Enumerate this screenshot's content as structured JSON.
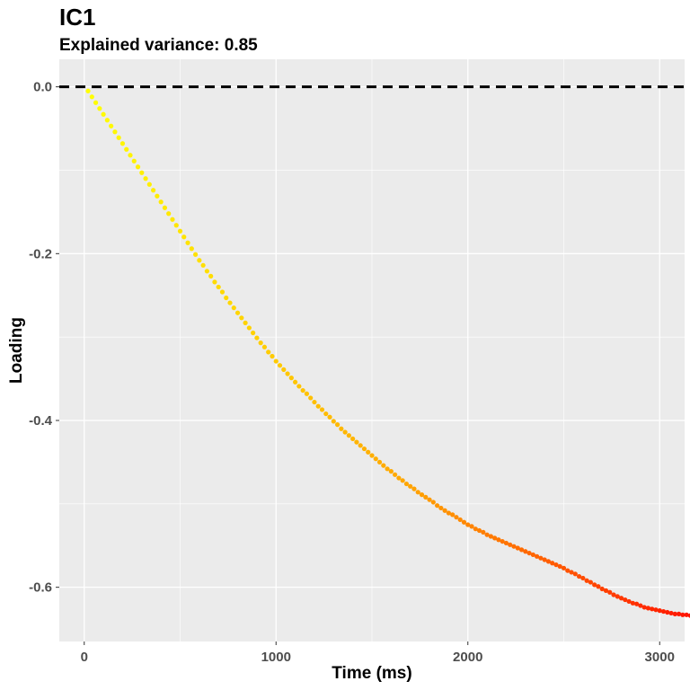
{
  "chart_data": {
    "type": "scatter",
    "title": "IC1",
    "subtitle": "Explained variance: 0.85",
    "xlabel": "Time (ms)",
    "ylabel": "Loading",
    "xlim": [
      -130,
      3130
    ],
    "ylim": [
      -0.665,
      0.033
    ],
    "x_ticks": [
      0,
      1000,
      2000,
      3000
    ],
    "x_tick_labels": [
      "0",
      "1000",
      "2000",
      "3000"
    ],
    "y_ticks": [
      0.0,
      -0.2,
      -0.4,
      -0.6
    ],
    "y_tick_labels": [
      "0.0",
      "-0.2",
      "-0.4",
      "-0.6"
    ],
    "grid": true,
    "reference_line": {
      "y": 0.0,
      "style": "dashed",
      "color": "#000000"
    },
    "color_gradient": [
      "#ffff00",
      "#ffa500",
      "#ff0000"
    ],
    "series": [
      {
        "x_start": 20,
        "x_step": 20,
        "values": [
          -0.005,
          -0.012,
          -0.019,
          -0.026,
          -0.033,
          -0.04,
          -0.047,
          -0.054,
          -0.061,
          -0.068,
          -0.075,
          -0.082,
          -0.089,
          -0.096,
          -0.103,
          -0.11,
          -0.117,
          -0.124,
          -0.131,
          -0.138,
          -0.145,
          -0.152,
          -0.159,
          -0.166,
          -0.173,
          -0.18,
          -0.187,
          -0.194,
          -0.201,
          -0.208,
          -0.214,
          -0.221,
          -0.227,
          -0.234,
          -0.24,
          -0.246,
          -0.253,
          -0.259,
          -0.265,
          -0.271,
          -0.277,
          -0.283,
          -0.289,
          -0.295,
          -0.301,
          -0.307,
          -0.312,
          -0.318,
          -0.323,
          -0.329,
          -0.334,
          -0.339,
          -0.344,
          -0.349,
          -0.354,
          -0.359,
          -0.364,
          -0.368,
          -0.373,
          -0.378,
          -0.383,
          -0.387,
          -0.392,
          -0.396,
          -0.401,
          -0.405,
          -0.41,
          -0.414,
          -0.418,
          -0.422,
          -0.426,
          -0.43,
          -0.434,
          -0.438,
          -0.442,
          -0.446,
          -0.45,
          -0.454,
          -0.458,
          -0.461,
          -0.465,
          -0.469,
          -0.472,
          -0.476,
          -0.479,
          -0.482,
          -0.486,
          -0.489,
          -0.492,
          -0.495,
          -0.498,
          -0.502,
          -0.505,
          -0.508,
          -0.511,
          -0.513,
          -0.516,
          -0.519,
          -0.522,
          -0.525,
          -0.527,
          -0.53,
          -0.532,
          -0.534,
          -0.537,
          -0.539,
          -0.541,
          -0.543,
          -0.545,
          -0.547,
          -0.549,
          -0.551,
          -0.553,
          -0.555,
          -0.557,
          -0.559,
          -0.561,
          -0.563,
          -0.565,
          -0.567,
          -0.569,
          -0.571,
          -0.573,
          -0.575,
          -0.577,
          -0.58,
          -0.582,
          -0.584,
          -0.587,
          -0.589,
          -0.592,
          -0.594,
          -0.597,
          -0.599,
          -0.602,
          -0.604,
          -0.606,
          -0.609,
          -0.611,
          -0.613,
          -0.615,
          -0.617,
          -0.619,
          -0.62,
          -0.622,
          -0.624,
          -0.625,
          -0.626,
          -0.627,
          -0.628,
          -0.629,
          -0.63,
          -0.631,
          -0.632,
          -0.632,
          -0.633,
          -0.633,
          -0.634,
          -0.634,
          -0.634,
          -0.635,
          -0.635,
          -0.635,
          -0.635,
          -0.635,
          -0.635,
          -0.636,
          -0.636
        ]
      }
    ]
  }
}
